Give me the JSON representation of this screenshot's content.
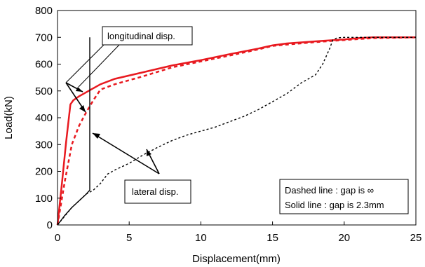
{
  "chart_data": {
    "type": "line",
    "title": "",
    "xlabel": "Displacement(mm)",
    "ylabel": "Load(kN)",
    "xlim": [
      0,
      25
    ],
    "ylim": [
      0,
      800
    ],
    "xticks": [
      0,
      5,
      10,
      15,
      20,
      25
    ],
    "yticks": [
      0,
      100,
      200,
      300,
      400,
      500,
      600,
      700,
      800
    ],
    "grid": false,
    "colors": {
      "solid_gap": "#e8191f",
      "dashed_inf": "#e8191f",
      "lateral": "#000000"
    },
    "series": [
      {
        "style": "solid",
        "color": "red",
        "x": [
          0,
          0.3,
          0.6,
          0.9,
          1.1,
          1.5,
          2.0,
          2.5,
          3.0,
          4.0,
          6.0,
          8.0,
          10.0,
          12.0,
          14.0,
          15.0,
          16.0,
          18.0,
          20.0,
          21.0,
          22.0,
          23.0,
          25.0
        ],
        "y": [
          0,
          150,
          310,
          450,
          465,
          480,
          495,
          510,
          525,
          545,
          570,
          595,
          615,
          637,
          658,
          670,
          677,
          685,
          692,
          697,
          700,
          700,
          700
        ]
      },
      {
        "style": "dashed",
        "color": "red",
        "x": [
          0,
          0.5,
          1.0,
          1.5,
          2.0,
          2.5,
          3.0,
          4.0,
          6.0,
          8.0,
          10.0,
          12.0,
          14.0,
          15.0,
          16.0,
          18.0,
          20.0,
          22.0,
          25.0
        ],
        "y": [
          0,
          160,
          300,
          370,
          420,
          465,
          505,
          525,
          555,
          588,
          610,
          632,
          655,
          668,
          673,
          682,
          690,
          697,
          700
        ]
      },
      {
        "style": "solid",
        "color": "black",
        "x": [
          0,
          0.5,
          1.0,
          1.5,
          2.0,
          2.25,
          2.25,
          2.25
        ],
        "y": [
          0,
          35,
          65,
          90,
          115,
          130,
          400,
          700
        ]
      },
      {
        "style": "dashed",
        "color": "black",
        "x": [
          0,
          1.0,
          2.0,
          2.5,
          3.0,
          3.5,
          4.0,
          5.0,
          6.0,
          7.0,
          8.0,
          9.0,
          10.0,
          11.0,
          12.0,
          13.0,
          14.0,
          15.0,
          16.0,
          17.0,
          18.0,
          18.5,
          19.0,
          19.2,
          19.5,
          20.0,
          22.0,
          25.0
        ],
        "y": [
          0,
          65,
          115,
          130,
          155,
          190,
          205,
          230,
          262,
          290,
          315,
          335,
          350,
          365,
          385,
          405,
          430,
          460,
          490,
          530,
          560,
          600,
          660,
          690,
          698,
          700,
          700,
          700
        ]
      }
    ],
    "annotations": [
      {
        "text": "longitudinal disp."
      },
      {
        "text": "lateral disp."
      }
    ],
    "legend_box": {
      "line1": "Dashed line : gap is ∞",
      "line2": "Solid line : gap is 2.3mm",
      "placement": "bottom-right"
    }
  }
}
